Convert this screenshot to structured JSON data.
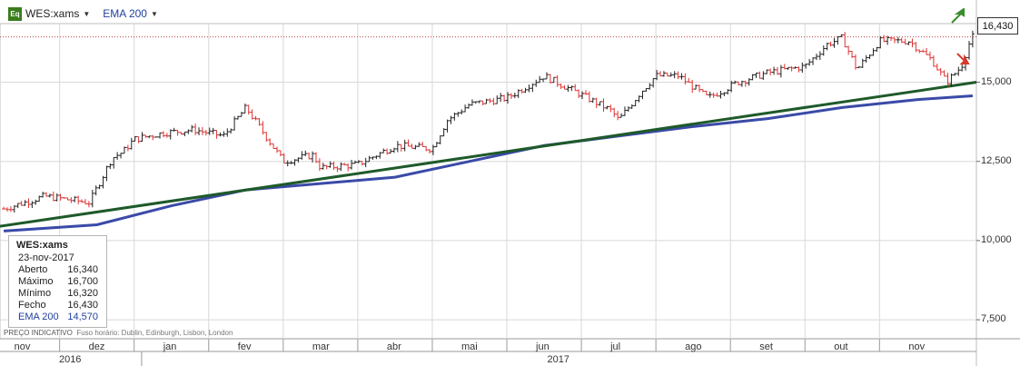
{
  "toolbar": {
    "app_badge": "Eq",
    "ticker": "WES:xams",
    "indicator": "EMA 200"
  },
  "info_box": {
    "title": "WES:xams",
    "date": "23-nov-2017",
    "rows": [
      {
        "label": "Aberto",
        "value": "16,340"
      },
      {
        "label": "Máximo",
        "value": "16,700"
      },
      {
        "label": "Mínimo",
        "value": "16,320"
      },
      {
        "label": "Fecho",
        "value": "16,430"
      }
    ],
    "ema_label": "EMA 200",
    "ema_value": "14,570"
  },
  "footer_note": {
    "indicative": "PREÇO INDICATIVO",
    "timezone": "Fuso horário: Dublin, Edinburgh, Lisbon, London"
  },
  "last_price_label": "16,430",
  "colors": {
    "up_candle": "#222222",
    "down_candle": "#e03030",
    "ema": "#3a4aa8",
    "trendline": "#1e5a2a",
    "last_price_line": "#c04040",
    "grid": "#d8d8d8"
  },
  "chart_data": {
    "type": "line",
    "title": "WES:xams",
    "y_ticks": [
      {
        "value": 7.5,
        "label": "7,500"
      },
      {
        "value": 10.0,
        "label": "10,000"
      },
      {
        "value": 12.5,
        "label": "12,500"
      },
      {
        "value": 15.0,
        "label": "15,000"
      }
    ],
    "ylim": [
      6.9,
      16.85
    ],
    "x_month_labels": [
      {
        "label": "nov",
        "month_index": 0
      },
      {
        "label": "dez",
        "month_index": 1
      },
      {
        "label": "jan",
        "month_index": 2
      },
      {
        "label": "fev",
        "month_index": 3
      },
      {
        "label": "mar",
        "month_index": 4
      },
      {
        "label": "abr",
        "month_index": 5
      },
      {
        "label": "mai",
        "month_index": 6
      },
      {
        "label": "jun",
        "month_index": 7
      },
      {
        "label": "jul",
        "month_index": 8
      },
      {
        "label": "ago",
        "month_index": 9
      },
      {
        "label": "set",
        "month_index": 10
      },
      {
        "label": "out",
        "month_index": 11
      },
      {
        "label": "nov",
        "month_index": 12
      }
    ],
    "x_years": [
      {
        "label": "2016",
        "start_month": -0.3,
        "end_month": 1.6
      },
      {
        "label": "2017",
        "start_month": 1.6,
        "end_month": 12.8
      }
    ],
    "xlim_months": [
      -0.3,
      12.8
    ],
    "price_series": {
      "name": "WES:xams",
      "x_months": [
        -0.25,
        0.3,
        0.6,
        0.9,
        1.2,
        1.35,
        1.5,
        1.9,
        2.3,
        2.7,
        3.0,
        3.5,
        3.9,
        4.0,
        4.5,
        5.0,
        5.5,
        5.7,
        6.0,
        6.5,
        7.0,
        7.5,
        7.9,
        8.0,
        8.3,
        8.5,
        8.8,
        9.2,
        9.6,
        10.0,
        10.5,
        10.8,
        11.0,
        11.2,
        11.5,
        11.9,
        12.2,
        12.4,
        12.6,
        12.7,
        12.75
      ],
      "close": [
        11.0,
        11.4,
        11.3,
        11.2,
        12.6,
        12.8,
        13.2,
        13.4,
        13.5,
        13.3,
        14.2,
        12.5,
        12.7,
        12.3,
        12.4,
        13.0,
        12.9,
        13.8,
        14.3,
        14.5,
        15.2,
        14.6,
        14.1,
        13.8,
        14.7,
        15.2,
        15.2,
        14.5,
        15.0,
        15.3,
        15.5,
        16.2,
        16.4,
        15.4,
        16.3,
        16.3,
        15.7,
        15.0,
        15.5,
        16.2,
        16.43
      ],
      "last_close": 16.43
    },
    "ema_series": {
      "name": "EMA 200",
      "x_months": [
        -0.25,
        1.0,
        2.0,
        3.0,
        4.0,
        5.0,
        6.0,
        7.0,
        8.0,
        9.0,
        10.0,
        11.0,
        12.0,
        12.75
      ],
      "y": [
        10.3,
        10.5,
        11.1,
        11.6,
        11.8,
        12.0,
        12.5,
        13.0,
        13.3,
        13.6,
        13.85,
        14.2,
        14.45,
        14.57
      ]
    },
    "trendline": {
      "x_months": [
        -0.3,
        12.8
      ],
      "y": [
        10.45,
        15.0
      ]
    }
  }
}
